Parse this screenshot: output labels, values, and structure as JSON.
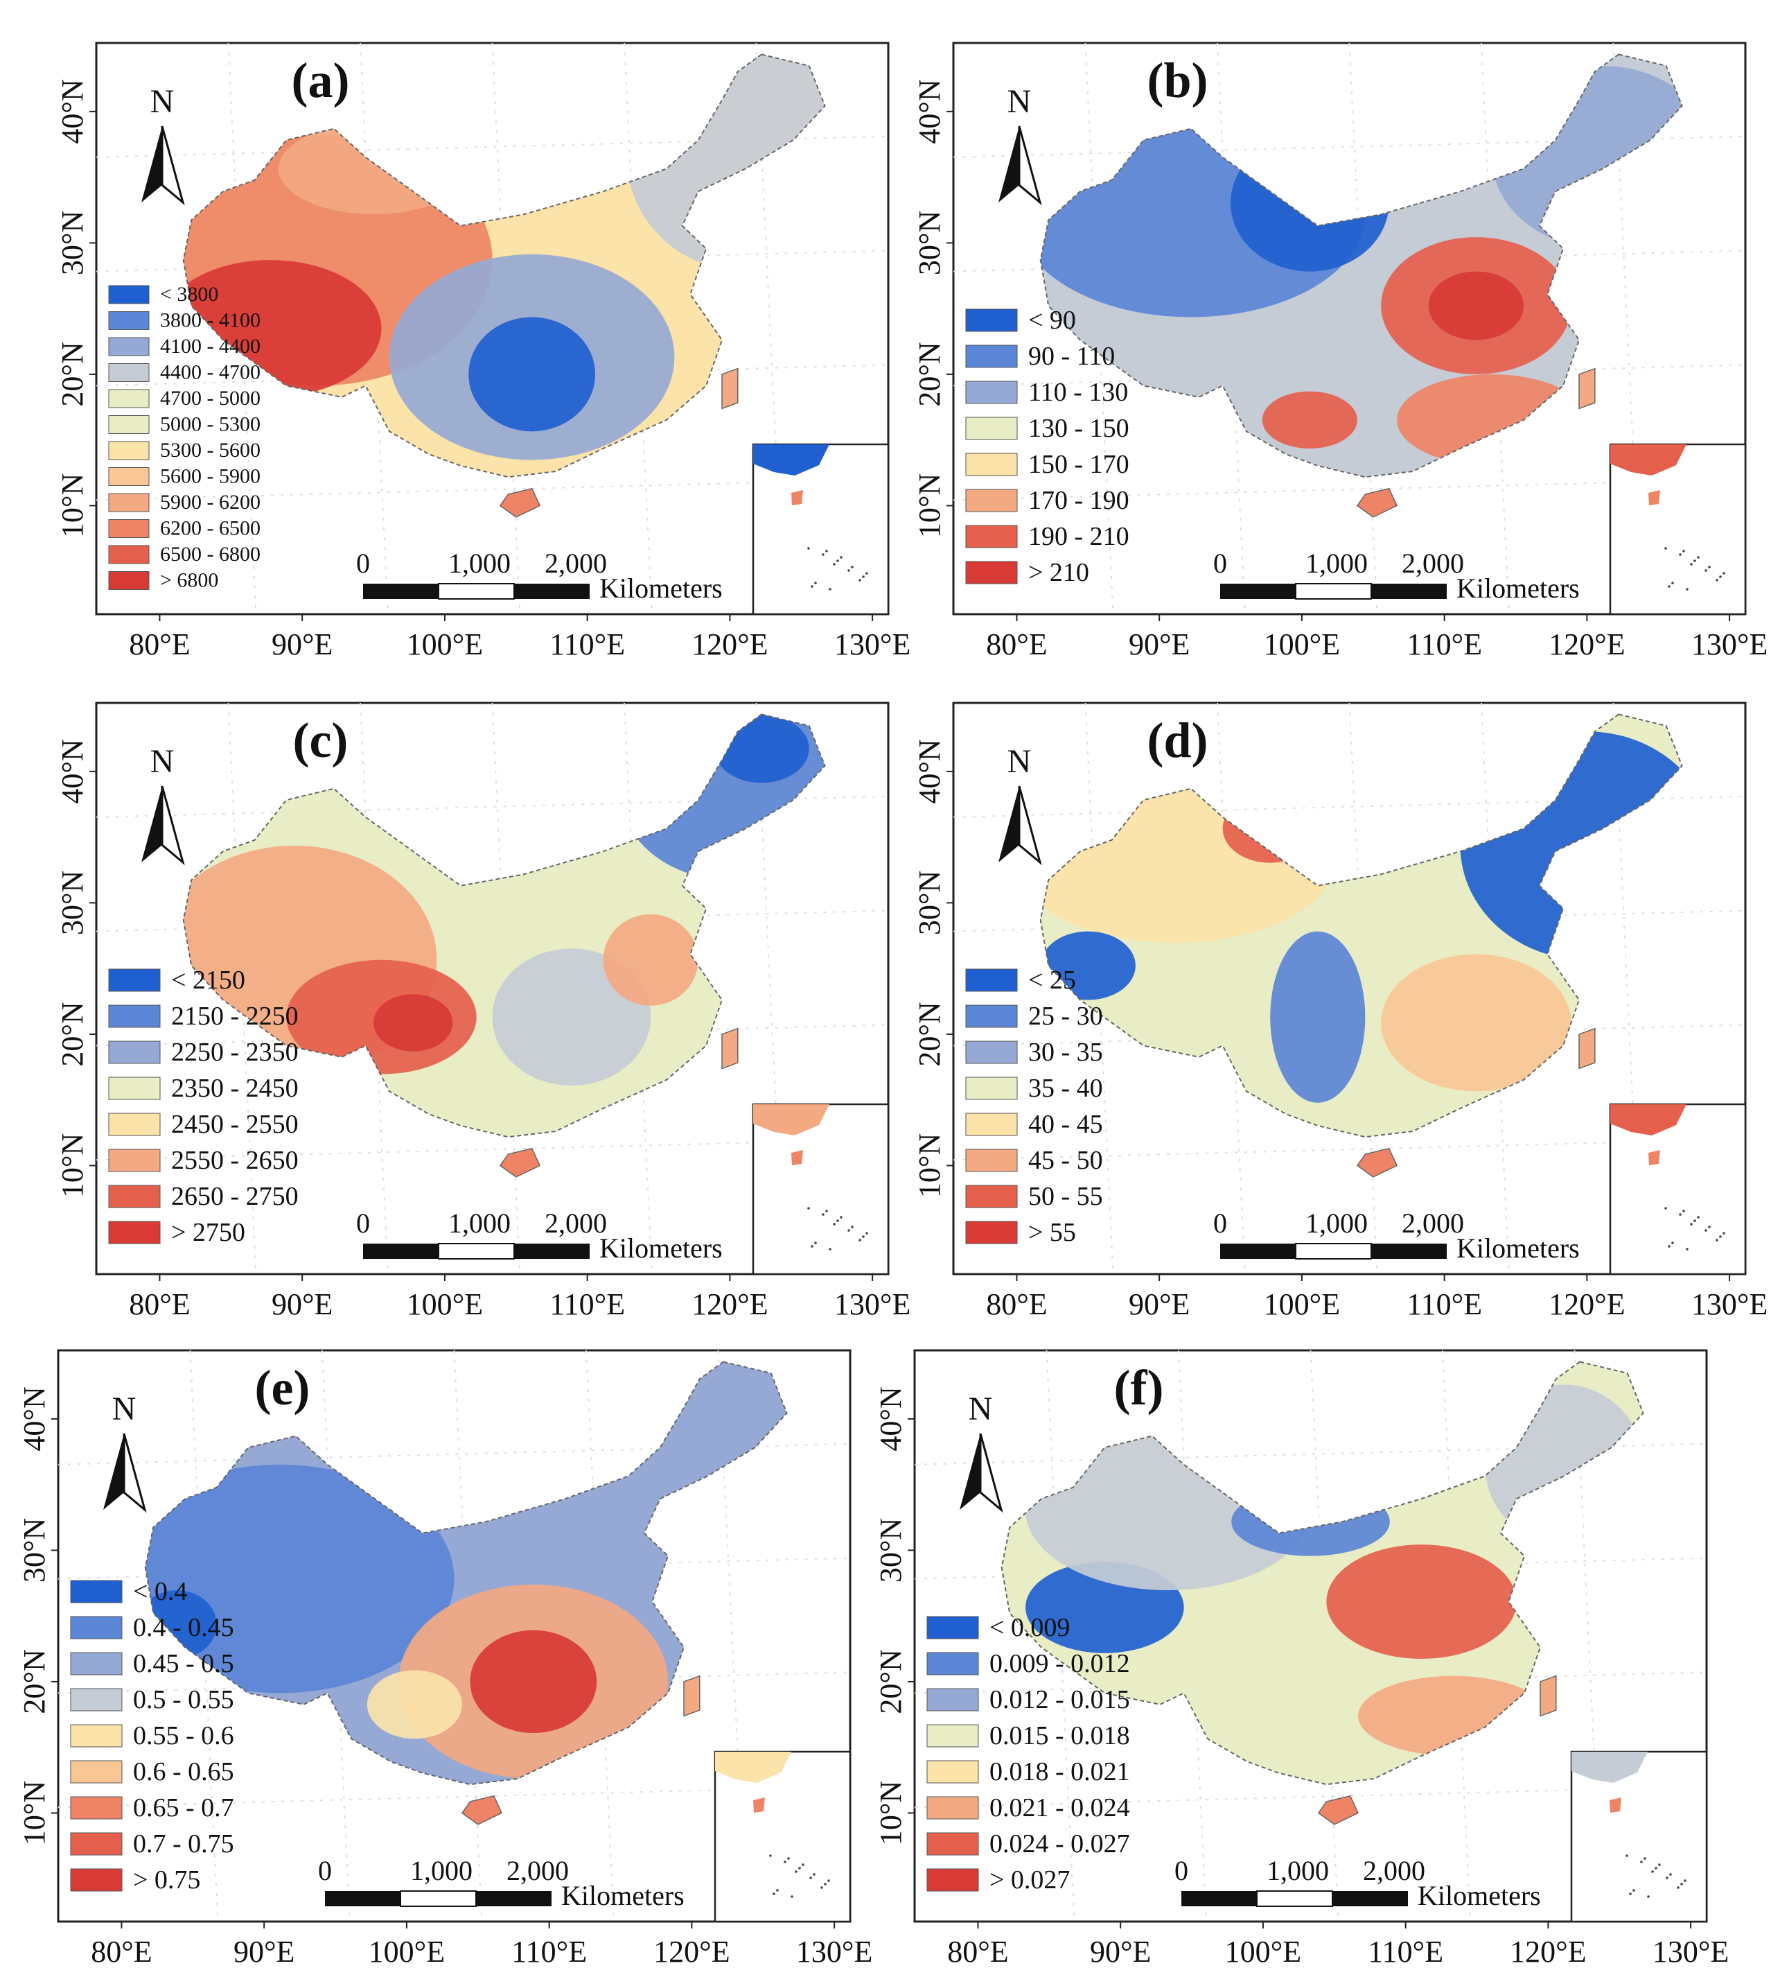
{
  "figure": {
    "scale_bar": {
      "ticks": [
        "0",
        "1,000",
        "2,000"
      ],
      "unit": "Kilometers"
    },
    "north_label": "N",
    "x_ticks": [
      "80°E",
      "90°E",
      "100°E",
      "110°E",
      "120°E",
      "130°E"
    ],
    "y_ticks": [
      "40°N",
      "30°N",
      "20°N",
      "10°N"
    ],
    "palette": [
      "#1f5fcf",
      "#5b86d6",
      "#95a9d4",
      "#c6ccd6",
      "#e9edc6",
      "#fbe3a9",
      "#f8c795",
      "#f3a982",
      "#ee8465",
      "#e55f4d",
      "#d83a35"
    ],
    "panels": [
      {
        "letter": "(a)",
        "legend": [
          "< 3800",
          "3800 - 4100",
          "4100 - 4400",
          "4400 - 4700",
          "4700 - 5000",
          "5000 - 5300",
          "5300 - 5600",
          "5600 - 5900",
          "5900 - 6200",
          "6200 - 6500",
          "6500 - 6800",
          "> 6800"
        ]
      },
      {
        "letter": "(b)",
        "legend": [
          "< 90",
          "90 - 110",
          "110 - 130",
          "130 - 150",
          "150 - 170",
          "170 - 190",
          "190 - 210",
          "> 210"
        ]
      },
      {
        "letter": "(c)",
        "legend": [
          "< 2150",
          "2150 - 2250",
          "2250 - 2350",
          "2350 - 2450",
          "2450 - 2550",
          "2550 - 2650",
          "2650 - 2750",
          "> 2750"
        ]
      },
      {
        "letter": "(d)",
        "legend": [
          "< 25",
          "25 - 30",
          "30 - 35",
          "35 - 40",
          "40 - 45",
          "45 - 50",
          "50 - 55",
          "> 55"
        ]
      },
      {
        "letter": "(e)",
        "legend": [
          "< 0.4",
          "0.4 - 0.45",
          "0.45 - 0.5",
          "0.5 - 0.55",
          "0.55 - 0.6",
          "0.6 - 0.65",
          "0.65 - 0.7",
          "0.7 - 0.75",
          "> 0.75"
        ]
      },
      {
        "letter": "(f)",
        "legend": [
          "< 0.009",
          "0.009 - 0.012",
          "0.012 - 0.015",
          "0.015 - 0.018",
          "0.018 - 0.021",
          "0.021 - 0.024",
          "0.024 - 0.027",
          "> 0.027"
        ]
      }
    ]
  }
}
